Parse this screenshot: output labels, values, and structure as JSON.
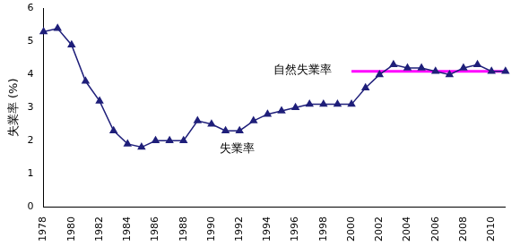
{
  "chart_data": {
    "type": "line",
    "y_label": "失業率 (%)",
    "categories": [
      "1978",
      null,
      "1980",
      null,
      "1982",
      null,
      "1984",
      null,
      "1986",
      null,
      "1988",
      null,
      "1990",
      null,
      "1992",
      null,
      "1994",
      null,
      "1996",
      null,
      "1998",
      null,
      "2000",
      null,
      "2002",
      null,
      "2004",
      null,
      "2006",
      null,
      "2008",
      null,
      "2010",
      null
    ],
    "series": [
      {
        "name": "失業率",
        "color": "#1f1f7a",
        "marker": "triangle",
        "line_style": "solid",
        "values": [
          5.3,
          5.4,
          4.9,
          3.8,
          3.2,
          2.3,
          1.9,
          1.8,
          2.0,
          2.0,
          2.0,
          2.6,
          2.5,
          2.3,
          2.3,
          2.6,
          2.8,
          2.9,
          3.0,
          3.1,
          3.1,
          3.1,
          3.1,
          3.6,
          4.0,
          4.3,
          4.2,
          4.2,
          4.1,
          4.0,
          4.2,
          4.3,
          4.1,
          4.1
        ]
      },
      {
        "name": "自然失業率",
        "color": "#ff00ff",
        "marker": "none",
        "line_style": "solid",
        "values": [
          null,
          null,
          null,
          null,
          null,
          null,
          null,
          null,
          null,
          null,
          null,
          null,
          null,
          null,
          null,
          null,
          null,
          null,
          null,
          null,
          null,
          null,
          4.1,
          4.1,
          4.1,
          4.1,
          4.1,
          4.1,
          4.1,
          4.1,
          4.1,
          4.1,
          4.1,
          4.1
        ]
      }
    ],
    "ylim": [
      0,
      6
    ],
    "yticks": [
      0,
      1,
      2,
      3,
      4,
      5,
      6
    ],
    "grid": false
  }
}
